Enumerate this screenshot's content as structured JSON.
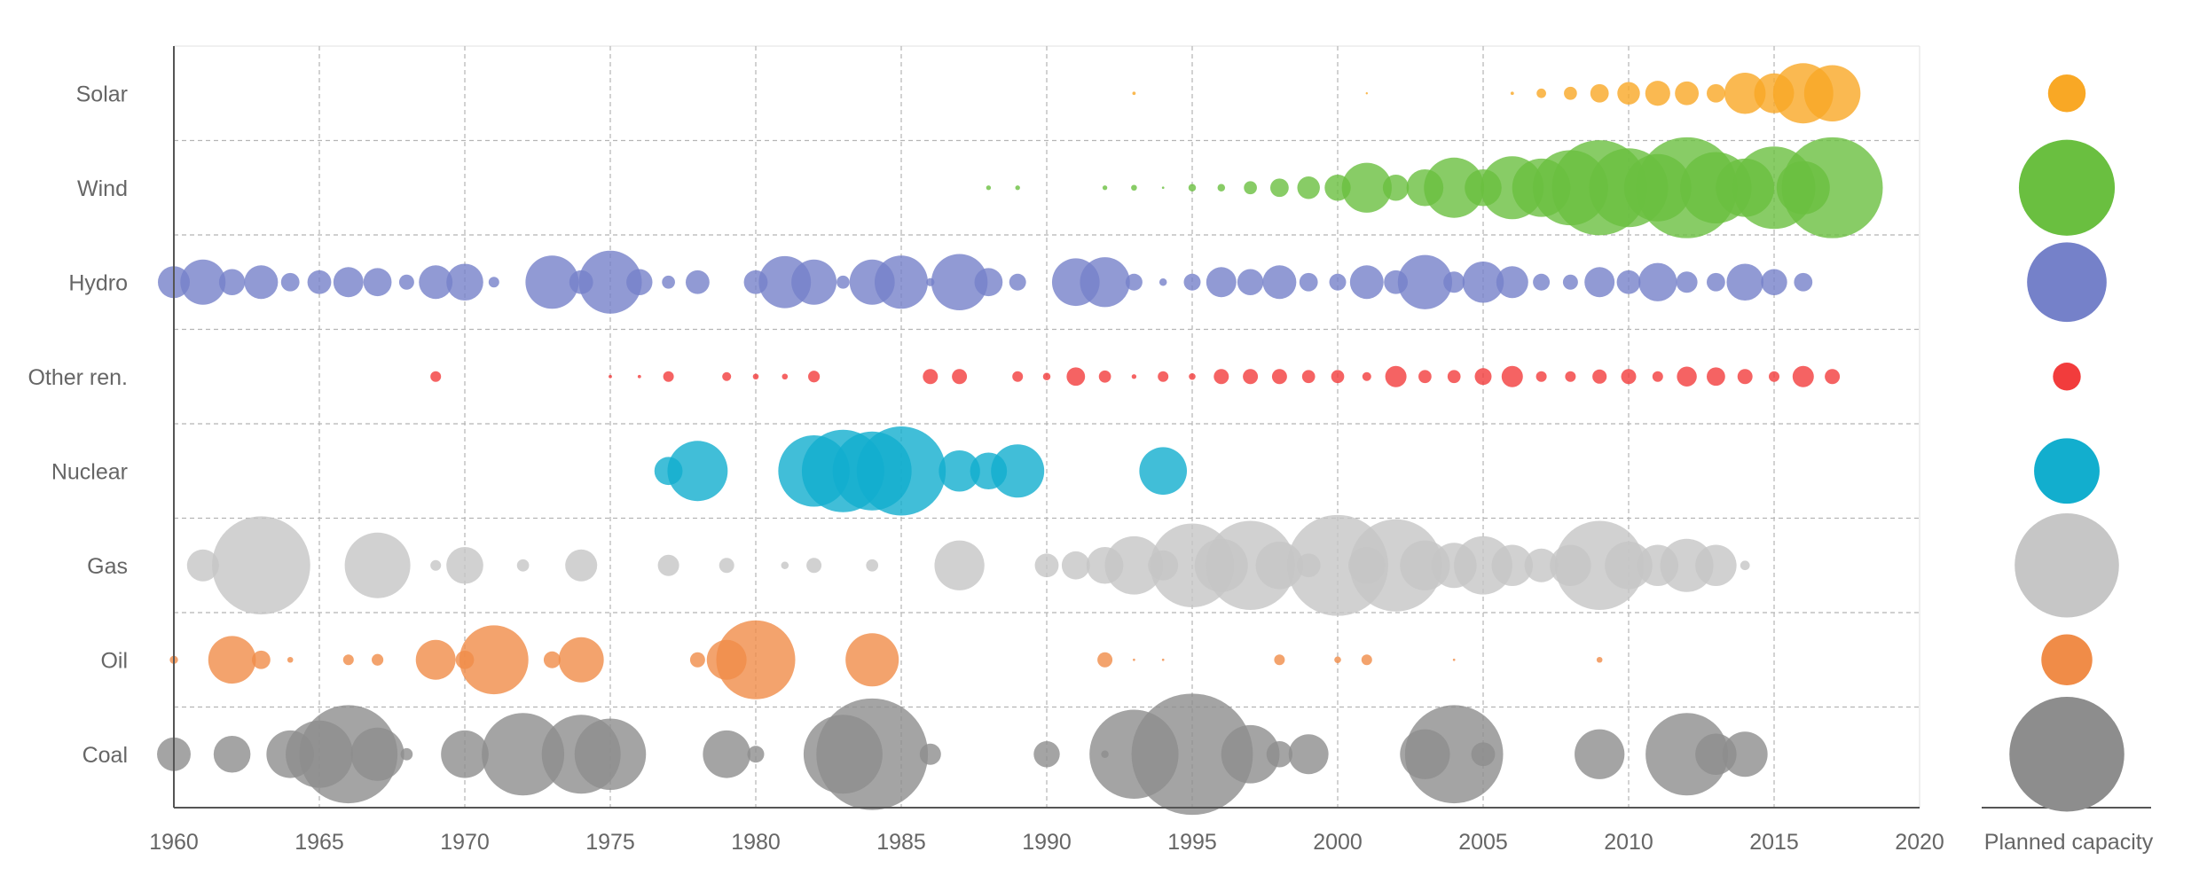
{
  "chart_data": {
    "type": "bubble-timeline",
    "title": "",
    "xlabel": "",
    "ylabel": "",
    "xlim": [
      1960,
      2020
    ],
    "x_ticks": [
      1960,
      1965,
      1970,
      1975,
      1980,
      1985,
      1990,
      1995,
      2000,
      2005,
      2010,
      2015,
      2020
    ],
    "legend_label": "Planned capacity",
    "legend_placement": "right",
    "grid": true,
    "value_note": "bubble values are relative planned capacity (area-scaled), estimated from bubble sizes",
    "series": [
      {
        "name": "Solar",
        "color": "#f9a825",
        "points": [
          [
            1993,
            0.1
          ],
          [
            2001,
            0.03
          ],
          [
            2006,
            0.1
          ],
          [
            2007,
            0.8
          ],
          [
            2008,
            1.5
          ],
          [
            2009,
            3
          ],
          [
            2010,
            4.5
          ],
          [
            2011,
            5.5
          ],
          [
            2012,
            5
          ],
          [
            2013,
            3
          ],
          [
            2014,
            15
          ],
          [
            2015,
            14
          ],
          [
            2016,
            32
          ],
          [
            2017,
            28
          ]
        ]
      },
      {
        "name": "Wind",
        "color": "#6abf40",
        "points": [
          [
            1988,
            0.2
          ],
          [
            1989,
            0.2
          ],
          [
            1992,
            0.2
          ],
          [
            1993,
            0.3
          ],
          [
            1994,
            0.05
          ],
          [
            1995,
            0.5
          ],
          [
            1996,
            0.5
          ],
          [
            1997,
            1.5
          ],
          [
            1998,
            3
          ],
          [
            1999,
            4.5
          ],
          [
            2000,
            6
          ],
          [
            2001,
            22
          ],
          [
            2002,
            6
          ],
          [
            2003,
            12
          ],
          [
            2004,
            32
          ],
          [
            2005,
            12
          ],
          [
            2006,
            35
          ],
          [
            2007,
            30
          ],
          [
            2008,
            50
          ],
          [
            2009,
            80
          ],
          [
            2010,
            55
          ],
          [
            2011,
            40
          ],
          [
            2012,
            90
          ],
          [
            2013,
            45
          ],
          [
            2014,
            30
          ],
          [
            2015,
            60
          ],
          [
            2016,
            25
          ],
          [
            2017,
            90
          ]
        ]
      },
      {
        "name": "Hydro",
        "color": "#7581c9",
        "points": [
          [
            1960,
            9
          ],
          [
            1961,
            18
          ],
          [
            1962,
            6
          ],
          [
            1963,
            10
          ],
          [
            1964,
            3
          ],
          [
            1965,
            5
          ],
          [
            1966,
            8
          ],
          [
            1967,
            7
          ],
          [
            1968,
            2
          ],
          [
            1969,
            10
          ],
          [
            1970,
            12
          ],
          [
            1971,
            1
          ],
          [
            1973,
            25
          ],
          [
            1974,
            5
          ],
          [
            1975,
            35
          ],
          [
            1976,
            6
          ],
          [
            1977,
            1.5
          ],
          [
            1978,
            5
          ],
          [
            1980,
            5
          ],
          [
            1981,
            24
          ],
          [
            1982,
            18
          ],
          [
            1983,
            1.5
          ],
          [
            1984,
            18
          ],
          [
            1985,
            25
          ],
          [
            1986,
            0.6
          ],
          [
            1987,
            28
          ],
          [
            1988,
            7
          ],
          [
            1989,
            2.5
          ],
          [
            1991,
            20
          ],
          [
            1992,
            22
          ],
          [
            1993,
            2.5
          ],
          [
            1994,
            0.5
          ],
          [
            1995,
            2.5
          ],
          [
            1996,
            8
          ],
          [
            1997,
            6
          ],
          [
            1998,
            10
          ],
          [
            1999,
            3
          ],
          [
            2000,
            2.5
          ],
          [
            2001,
            10
          ],
          [
            2002,
            5
          ],
          [
            2003,
            26
          ],
          [
            2004,
            4
          ],
          [
            2005,
            15
          ],
          [
            2006,
            9
          ],
          [
            2007,
            2.5
          ],
          [
            2008,
            2
          ],
          [
            2009,
            8
          ],
          [
            2010,
            5
          ],
          [
            2011,
            13
          ],
          [
            2012,
            4
          ],
          [
            2013,
            3
          ],
          [
            2014,
            12
          ],
          [
            2015,
            6
          ],
          [
            2016,
            3
          ]
        ]
      },
      {
        "name": "Other ren.",
        "color": "#f23c3c",
        "points": [
          [
            1969,
            1
          ],
          [
            1975,
            0.1
          ],
          [
            1976,
            0.1
          ],
          [
            1977,
            1
          ],
          [
            1979,
            0.7
          ],
          [
            1980,
            0.3
          ],
          [
            1981,
            0.3
          ],
          [
            1982,
            1.2
          ],
          [
            1986,
            2
          ],
          [
            1987,
            2
          ],
          [
            1989,
            1
          ],
          [
            1990,
            0.5
          ],
          [
            1991,
            3
          ],
          [
            1992,
            1.3
          ],
          [
            1993,
            0.2
          ],
          [
            1994,
            1
          ],
          [
            1995,
            0.4
          ],
          [
            1996,
            2
          ],
          [
            1997,
            2
          ],
          [
            1998,
            2
          ],
          [
            1999,
            1.5
          ],
          [
            2000,
            1.5
          ],
          [
            2001,
            0.7
          ],
          [
            2002,
            4
          ],
          [
            2003,
            1.5
          ],
          [
            2004,
            1.5
          ],
          [
            2005,
            2.5
          ],
          [
            2006,
            4
          ],
          [
            2007,
            1
          ],
          [
            2008,
            1
          ],
          [
            2009,
            1.8
          ],
          [
            2010,
            2
          ],
          [
            2011,
            1
          ],
          [
            2012,
            3.5
          ],
          [
            2013,
            3
          ],
          [
            2014,
            2
          ],
          [
            2015,
            1
          ],
          [
            2016,
            4
          ],
          [
            2017,
            2
          ]
        ]
      },
      {
        "name": "Nuclear",
        "color": "#12aece",
        "points": [
          [
            1977,
            7
          ],
          [
            1978,
            32
          ],
          [
            1982,
            45
          ],
          [
            1983,
            60
          ],
          [
            1984,
            55
          ],
          [
            1985,
            70
          ],
          [
            1987,
            15
          ],
          [
            1988,
            12
          ],
          [
            1989,
            25
          ],
          [
            1994,
            20
          ]
        ]
      },
      {
        "name": "Gas",
        "color": "#c6c6c6",
        "points": [
          [
            1961,
            9
          ],
          [
            1963,
            85
          ],
          [
            1967,
            38
          ],
          [
            1969,
            1
          ],
          [
            1970,
            12
          ],
          [
            1972,
            1.3
          ],
          [
            1974,
            9
          ],
          [
            1977,
            4
          ],
          [
            1979,
            2
          ],
          [
            1981,
            0.5
          ],
          [
            1982,
            2
          ],
          [
            1984,
            1.3
          ],
          [
            1987,
            22
          ],
          [
            1990,
            5
          ],
          [
            1991,
            7
          ],
          [
            1992,
            12
          ],
          [
            1993,
            30
          ],
          [
            1994,
            8
          ],
          [
            1995,
            62
          ],
          [
            1996,
            25
          ],
          [
            1997,
            70
          ],
          [
            1998,
            20
          ],
          [
            1999,
            5
          ],
          [
            2000,
            90
          ],
          [
            2001,
            12
          ],
          [
            2002,
            75
          ],
          [
            2003,
            22
          ],
          [
            2004,
            18
          ],
          [
            2005,
            30
          ],
          [
            2006,
            15
          ],
          [
            2007,
            10
          ],
          [
            2008,
            15
          ],
          [
            2009,
            70
          ],
          [
            2010,
            20
          ],
          [
            2011,
            15
          ],
          [
            2012,
            25
          ],
          [
            2013,
            15
          ],
          [
            2014,
            0.8
          ]
        ]
      },
      {
        "name": "Oil",
        "color": "#f08c48",
        "points": [
          [
            1960,
            0.6
          ],
          [
            1962,
            20
          ],
          [
            1963,
            3
          ],
          [
            1964,
            0.3
          ],
          [
            1966,
            1
          ],
          [
            1967,
            1.2
          ],
          [
            1969,
            14
          ],
          [
            1970,
            3
          ],
          [
            1971,
            42
          ],
          [
            1973,
            2.5
          ],
          [
            1974,
            18
          ],
          [
            1978,
            2
          ],
          [
            1979,
            14
          ],
          [
            1980,
            55
          ],
          [
            1984,
            25
          ],
          [
            1992,
            2
          ],
          [
            1993,
            0.05
          ],
          [
            1994,
            0.05
          ],
          [
            1998,
            1
          ],
          [
            2000,
            0.4
          ],
          [
            2001,
            1
          ],
          [
            2004,
            0.05
          ],
          [
            2009,
            0.3
          ]
        ]
      },
      {
        "name": "Coal",
        "color": "#8d8d8d",
        "points": [
          [
            1960,
            10
          ],
          [
            1962,
            12
          ],
          [
            1964,
            20
          ],
          [
            1965,
            40
          ],
          [
            1966,
            85
          ],
          [
            1967,
            25
          ],
          [
            1968,
            1.3
          ],
          [
            1970,
            20
          ],
          [
            1972,
            60
          ],
          [
            1974,
            55
          ],
          [
            1975,
            45
          ],
          [
            1979,
            20
          ],
          [
            1980,
            2.5
          ],
          [
            1983,
            55
          ],
          [
            1984,
            110
          ],
          [
            1986,
            4
          ],
          [
            1990,
            6
          ],
          [
            1992,
            0.5
          ],
          [
            1993,
            70
          ],
          [
            1995,
            130
          ],
          [
            1997,
            30
          ],
          [
            1998,
            6
          ],
          [
            1999,
            14
          ],
          [
            2003,
            22
          ],
          [
            2004,
            85
          ],
          [
            2005,
            5
          ],
          [
            2009,
            22
          ],
          [
            2012,
            60
          ],
          [
            2013,
            15
          ],
          [
            2014,
            18
          ]
        ]
      }
    ]
  }
}
